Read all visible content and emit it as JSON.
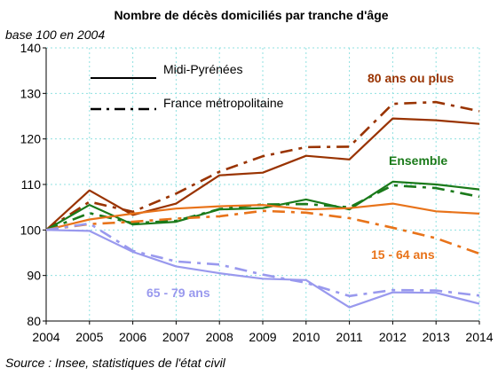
{
  "chart_data": {
    "type": "line",
    "title": "Nombre de décès domiciliés par tranche d'âge",
    "subtitle": "base 100 en 2004",
    "source": "Source : Insee, statistiques de l'état civil",
    "x": [
      2004,
      2005,
      2006,
      2007,
      2008,
      2009,
      2010,
      2011,
      2012,
      2013,
      2014
    ],
    "x_tick_labels": [
      "2004",
      "2005",
      "2006",
      "2007",
      "2008",
      "2009",
      "2010",
      "2011",
      "2012",
      "2013",
      "2014"
    ],
    "ylim": [
      80,
      140
    ],
    "y_ticks": [
      80,
      90,
      100,
      110,
      120,
      130,
      140
    ],
    "y_tick_labels": [
      "80",
      "90",
      "100",
      "110",
      "120",
      "130",
      "140"
    ],
    "grid": true,
    "legend": {
      "placement": "top-left",
      "entries": [
        {
          "label": "Midi-Pyrénées",
          "style": "solid"
        },
        {
          "label": "France métropolitaine",
          "style": "dashdot"
        }
      ]
    },
    "annotations": [
      {
        "key": "a80",
        "text": "80 ans ou plus",
        "color": "#993300"
      },
      {
        "key": "aEns",
        "text": "Ensemble",
        "color": "#1a7a1a"
      },
      {
        "key": "a1564",
        "text": "15 - 64 ans",
        "color": "#e8731a"
      },
      {
        "key": "a6579",
        "text": "65 - 79 ans",
        "color": "#9999ee"
      }
    ],
    "series": [
      {
        "group": "80 ans ou plus",
        "region": "Midi-Pyrénées",
        "style": "solid",
        "color": "#993300",
        "values": [
          100,
          108.7,
          103.3,
          105.8,
          112,
          112.6,
          116.3,
          115.5,
          124.5,
          124.1,
          123.3
        ]
      },
      {
        "group": "80 ans ou plus",
        "region": "France métropolitaine",
        "style": "dashdot",
        "color": "#993300",
        "values": [
          100,
          106.2,
          104,
          108,
          112.8,
          116.2,
          118.2,
          118.3,
          127.7,
          128.1,
          126.1
        ]
      },
      {
        "group": "Ensemble",
        "region": "Midi-Pyrénées",
        "style": "solid",
        "color": "#1a7a1a",
        "values": [
          100,
          105.5,
          101.2,
          101.8,
          104.5,
          104.8,
          106.7,
          104.5,
          110.6,
          110,
          108.9
        ]
      },
      {
        "group": "Ensemble",
        "region": "France métropolitaine",
        "style": "dashdot",
        "color": "#1a7a1a",
        "values": [
          100,
          103.7,
          101.5,
          102,
          104.6,
          105.6,
          105.7,
          105,
          109.8,
          109.2,
          107.3
        ]
      },
      {
        "group": "15 - 64 ans",
        "region": "Midi-Pyrénées",
        "style": "solid",
        "color": "#e8731a",
        "values": [
          100,
          102.3,
          103.6,
          104.7,
          105.2,
          105.5,
          104.5,
          104.8,
          105.8,
          104.1,
          103.6
        ]
      },
      {
        "group": "15 - 64 ans",
        "region": "France métropolitaine",
        "style": "dashdot",
        "color": "#e8731a",
        "values": [
          100,
          101.3,
          101.8,
          102.5,
          103,
          104.2,
          103.8,
          102.6,
          100.5,
          98.2,
          94.8
        ]
      },
      {
        "group": "65 - 79 ans",
        "region": "Midi-Pyrénées",
        "style": "solid",
        "color": "#9999ee",
        "values": [
          100,
          99.8,
          95.2,
          92,
          90.5,
          89.3,
          89,
          83,
          86.3,
          86.2,
          83.8
        ]
      },
      {
        "group": "65 - 79 ans",
        "region": "France métropolitaine",
        "style": "dashdot",
        "color": "#9999ee",
        "values": [
          100,
          101.4,
          95.4,
          93.1,
          92.4,
          90.2,
          88.4,
          85.5,
          86.8,
          86.7,
          85.6
        ]
      }
    ]
  }
}
